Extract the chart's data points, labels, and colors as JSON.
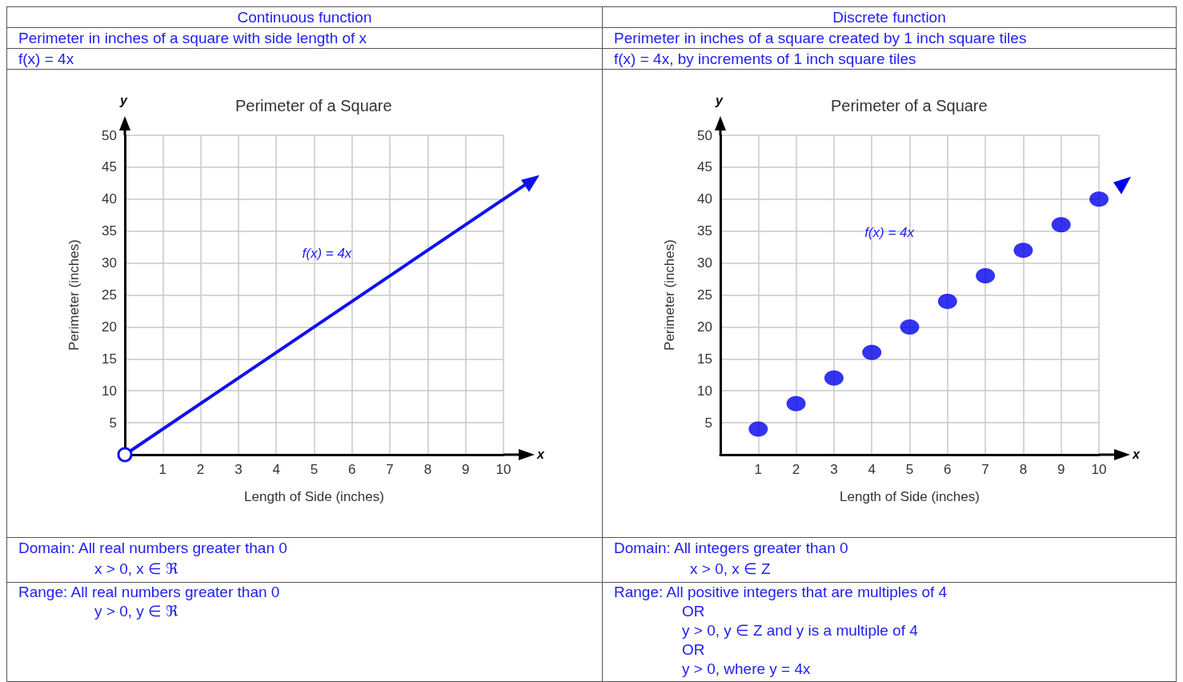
{
  "chart_data": [
    {
      "type": "line",
      "title": "Perimeter of a Square",
      "xlabel": "Length of Side (inches)",
      "ylabel": "Perimeter (inches)",
      "x": [
        0,
        10
      ],
      "series": [
        {
          "name": "f(x) = 4x",
          "color": "#1010f0",
          "values": [
            0,
            40
          ]
        }
      ],
      "xlim": [
        0,
        10
      ],
      "xticks": [
        1,
        2,
        3,
        4,
        5,
        6,
        7,
        8,
        9,
        10
      ],
      "ylim": [
        0,
        50
      ],
      "yticks": [
        5,
        10,
        15,
        20,
        25,
        30,
        35,
        40,
        45,
        50
      ],
      "grid": true,
      "legend": false,
      "marker": "circle",
      "annotations": [
        "Continuous function",
        "Perimeter in inches of a square with side length of x",
        "f(x) = 4x",
        "Domain: All real numbers greater than 0",
        "x > 0, x ∈ ℜ",
        "Range: All real numbers greater than 0",
        "y > 0, y ∈ ℜ",
        "x",
        "y"
      ]
    },
    {
      "type": "scatter",
      "title": "Perimeter of a Square",
      "xlabel": "Length of Side (inches)",
      "ylabel": "Perimeter (inches)",
      "x": [
        1,
        2,
        3,
        4,
        5,
        6,
        7,
        8,
        9,
        10
      ],
      "series": [
        {
          "name": "f(x) = 4x",
          "color": "#0000ee",
          "values": [
            4,
            8,
            12,
            16,
            20,
            24,
            28,
            32,
            36,
            40
          ]
        }
      ],
      "xlim": [
        0,
        10
      ],
      "xticks": [
        1,
        2,
        3,
        4,
        5,
        6,
        7,
        8,
        9,
        10
      ],
      "ylim": [
        0,
        50
      ],
      "yticks": [
        5,
        10,
        15,
        20,
        25,
        30,
        35,
        40,
        45,
        50
      ],
      "grid": true,
      "legend": false,
      "marker": "circle",
      "annotations": [
        "Discrete function",
        "Perimeter in inches of a square created by 1 inch square tiles",
        "f(x) = 4x, by increments of 1 inch square tiles",
        "Domain: All integers greater than 0",
        "x > 0, x ∈ Z",
        "Range: All positive integers that are multiples of 4",
        "OR",
        "y > 0, y ∈ Z and y is a multiple of 4",
        "OR",
        "y > 0, where y = 4x",
        "x",
        "y"
      ]
    }
  ]
}
